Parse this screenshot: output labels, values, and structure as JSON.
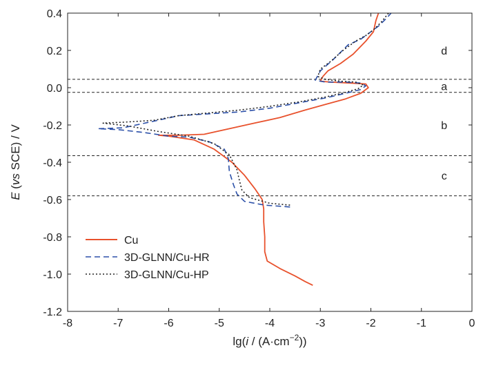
{
  "chart_data": {
    "type": "line",
    "title": "",
    "xlabel": {
      "prefix": "lg(",
      "italic": "i",
      "suffix": " / (A·cm",
      "sup": "−2",
      "end": "))"
    },
    "ylabel": {
      "italic_e": "E",
      "open": " (",
      "italic_vs": "vs",
      "rest": " SCE) / V"
    },
    "xlim": [
      -8,
      0
    ],
    "ylim": [
      -1.2,
      0.4
    ],
    "xticks": [
      -8,
      -7,
      -6,
      -5,
      -4,
      -3,
      -2,
      -1,
      0
    ],
    "xtick_labels": [
      "-8",
      "-7",
      "-6",
      "-5",
      "-4",
      "-3",
      "-2",
      "-1",
      "0"
    ],
    "yticks": [
      0.4,
      0.2,
      0.0,
      -0.2,
      -0.4,
      -0.6,
      -0.8,
      -1.0,
      -1.2
    ],
    "ytick_labels": [
      "0.4",
      "0.2",
      "0.0",
      "-0.2",
      "-0.4",
      "-0.6",
      "-0.8",
      "-1.0",
      "-1.2"
    ],
    "hlines": [
      0.045,
      -0.025,
      -0.365,
      -0.58
    ],
    "regions": [
      {
        "label": "d",
        "x": -0.55,
        "y": 0.2
      },
      {
        "label": "a",
        "x": -0.55,
        "y": 0.01
      },
      {
        "label": "b",
        "x": -0.55,
        "y": -0.2
      },
      {
        "label": "c",
        "x": -0.55,
        "y": -0.47
      }
    ],
    "legend_position": "lower-left",
    "series": [
      {
        "name": "Cu",
        "color": "#e8512c",
        "dash": "solid",
        "x": [
          -3.15,
          -3.3,
          -3.5,
          -3.8,
          -4.05,
          -4.1,
          -4.1,
          -4.12,
          -4.12,
          -4.15,
          -4.3,
          -4.5,
          -4.75,
          -5.1,
          -5.5,
          -6.0,
          -6.2,
          -5.8,
          -5.3,
          -4.8,
          -4.3,
          -3.8,
          -3.3,
          -2.9,
          -2.5,
          -2.2,
          -2.05,
          -2.1,
          -2.4,
          -2.8,
          -3.0,
          -2.95,
          -2.85,
          -2.6,
          -2.35,
          -2.1,
          -1.95,
          -1.9,
          -1.85
        ],
        "y": [
          -1.06,
          -1.04,
          -1.01,
          -0.97,
          -0.93,
          -0.88,
          -0.8,
          -0.72,
          -0.65,
          -0.6,
          -0.54,
          -0.47,
          -0.4,
          -0.33,
          -0.28,
          -0.26,
          -0.255,
          -0.255,
          -0.25,
          -0.22,
          -0.19,
          -0.16,
          -0.12,
          -0.09,
          -0.06,
          -0.03,
          0.0,
          0.02,
          0.025,
          0.03,
          0.035,
          0.06,
          0.09,
          0.13,
          0.18,
          0.25,
          0.3,
          0.36,
          0.4
        ]
      },
      {
        "name": "3D-GLNN/Cu-HR",
        "color": "#2b4fa8",
        "dash": "8,5",
        "x": [
          -3.6,
          -4.1,
          -4.5,
          -4.65,
          -4.72,
          -4.8,
          -4.82,
          -4.9,
          -5.2,
          -5.6,
          -6.0,
          -6.5,
          -7.0,
          -7.4,
          -6.9,
          -6.3,
          -5.8,
          -5.2,
          -4.6,
          -4.0,
          -3.4,
          -2.9,
          -2.5,
          -2.2,
          -2.1,
          -2.2,
          -2.5,
          -2.9,
          -3.1,
          -3.0,
          -2.75,
          -2.45,
          -2.2,
          -2.0,
          -1.85,
          -1.7,
          -1.6
        ],
        "y": [
          -0.64,
          -0.63,
          -0.61,
          -0.57,
          -0.52,
          -0.45,
          -0.38,
          -0.33,
          -0.29,
          -0.265,
          -0.26,
          -0.24,
          -0.225,
          -0.22,
          -0.215,
          -0.18,
          -0.15,
          -0.14,
          -0.13,
          -0.11,
          -0.08,
          -0.055,
          -0.03,
          -0.01,
          0.01,
          0.025,
          0.03,
          0.03,
          0.04,
          0.09,
          0.15,
          0.23,
          0.26,
          0.3,
          0.33,
          0.37,
          0.4
        ]
      },
      {
        "name": "3D-GLNN/Cu-HP",
        "color": "#222222",
        "dash": "2,3",
        "x": [
          -3.6,
          -4.0,
          -4.4,
          -4.55,
          -4.6,
          -4.65,
          -4.8,
          -5.1,
          -5.6,
          -6.2,
          -6.8,
          -7.3,
          -6.9,
          -6.3,
          -5.8,
          -5.2,
          -4.6,
          -4.0,
          -3.4,
          -2.9,
          -2.5,
          -2.25,
          -2.15,
          -2.3,
          -2.6,
          -2.9,
          -3.05,
          -3.0,
          -2.8,
          -2.55,
          -2.3,
          -2.1,
          -1.95,
          -1.8,
          -1.65
        ],
        "y": [
          -0.63,
          -0.62,
          -0.59,
          -0.55,
          -0.5,
          -0.44,
          -0.36,
          -0.3,
          -0.26,
          -0.235,
          -0.205,
          -0.19,
          -0.185,
          -0.175,
          -0.15,
          -0.135,
          -0.12,
          -0.1,
          -0.075,
          -0.05,
          -0.025,
          -0.005,
          0.015,
          0.03,
          0.035,
          0.045,
          0.06,
          0.1,
          0.14,
          0.2,
          0.25,
          0.28,
          0.31,
          0.35,
          0.4
        ]
      }
    ]
  }
}
